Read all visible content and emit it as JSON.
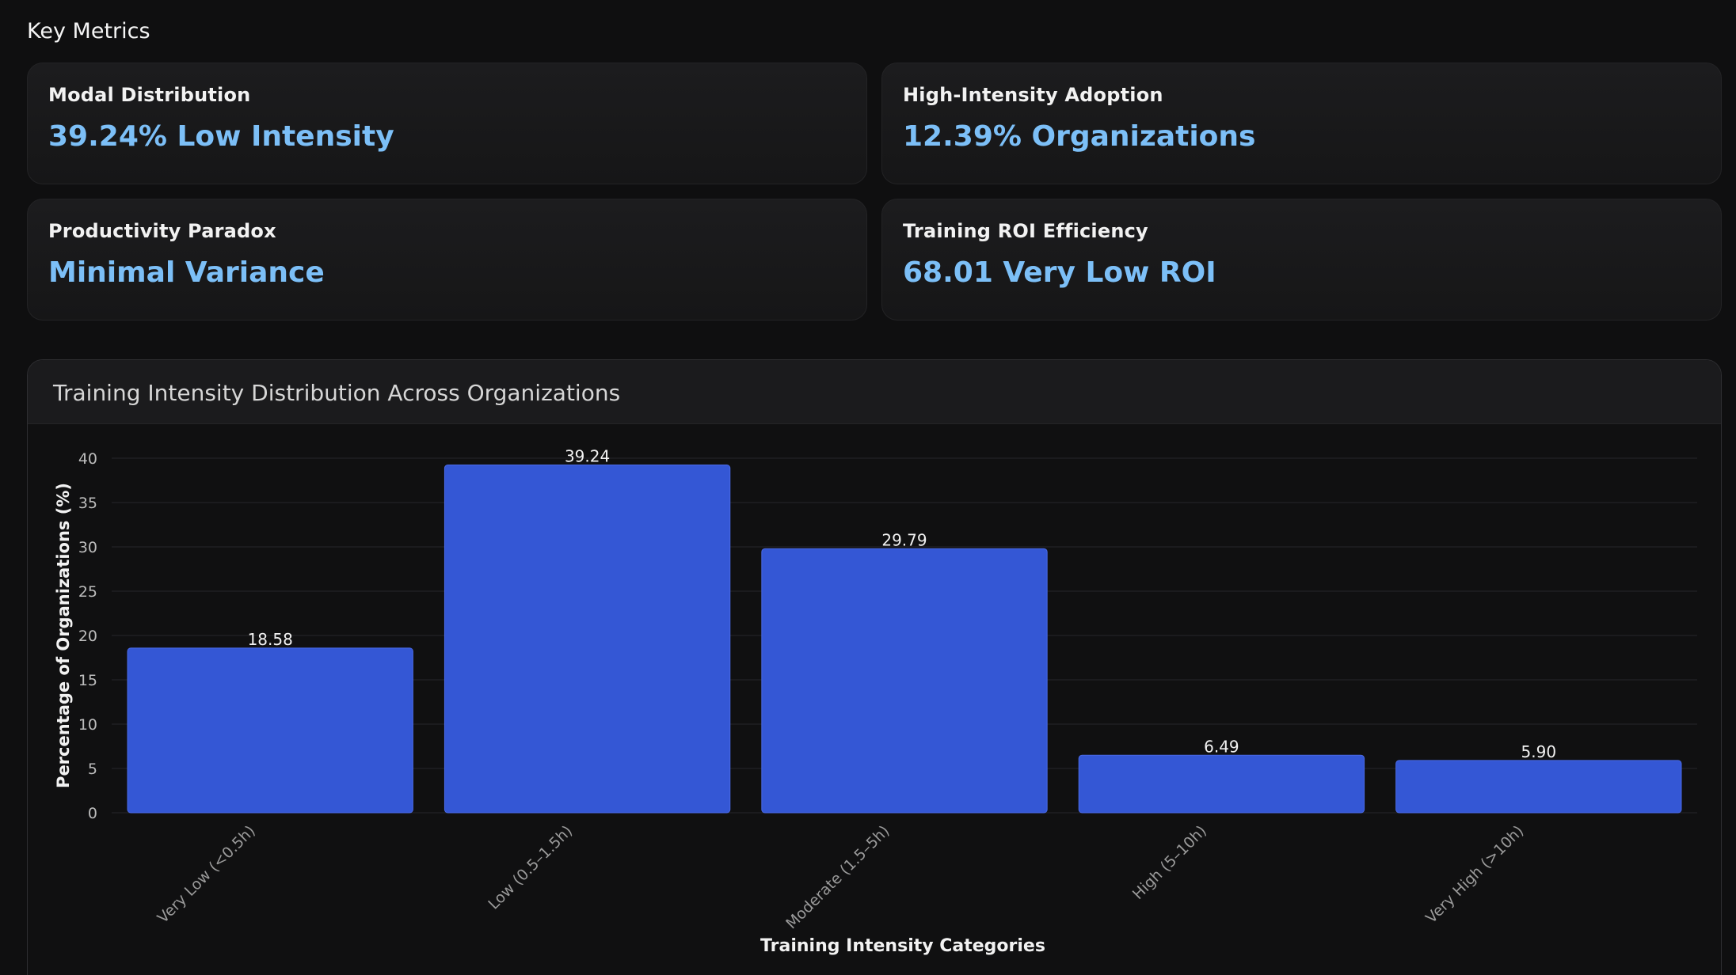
{
  "section": {
    "title": "Key Metrics"
  },
  "metrics": [
    {
      "label": "Modal Distribution",
      "value": "39.24% Low Intensity"
    },
    {
      "label": "High-Intensity Adoption",
      "value": "12.39% Organizations"
    },
    {
      "label": "Productivity Paradox",
      "value": "Minimal Variance"
    },
    {
      "label": "Training ROI Efficiency",
      "value": "68.01 Very Low ROI"
    }
  ],
  "colors": {
    "accent_value": "#7cbff7",
    "bar_fill": "#3457d5",
    "background": "#0f0f10"
  },
  "chart_data": {
    "type": "bar",
    "title": "Training Intensity Distribution Across Organizations",
    "xlabel": "Training Intensity Categories",
    "ylabel": "Percentage of Organizations (%)",
    "categories": [
      "Very Low (<0.5h)",
      "Low (0.5–1.5h)",
      "Moderate (1.5–5h)",
      "High (5–10h)",
      "Very High (>10h)"
    ],
    "values": [
      18.58,
      39.24,
      29.79,
      6.49,
      5.9
    ],
    "value_labels": [
      "18.58",
      "39.24",
      "29.79",
      "6.49",
      "5.90"
    ],
    "ylim": [
      0,
      40
    ],
    "yticks": [
      0,
      5,
      10,
      15,
      20,
      25,
      30,
      35,
      40
    ],
    "grid": true,
    "legend": "none"
  }
}
